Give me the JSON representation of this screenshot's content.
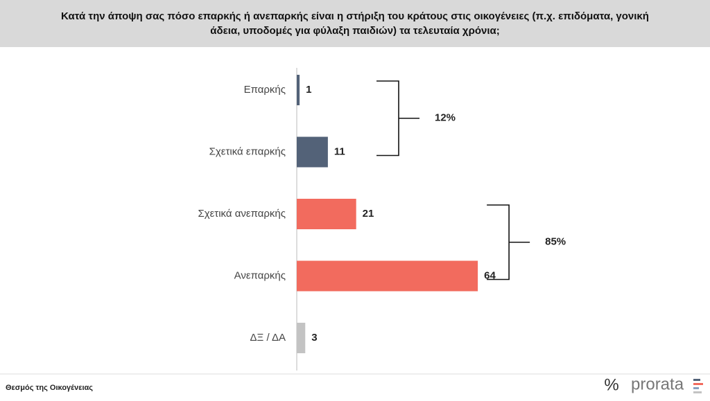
{
  "chart_data": {
    "type": "hbar",
    "title": "Κατά την άποψη σας πόσο επαρκής ή ανεπαρκής είναι η στήριξη του κράτους στις οικογένειες (π.χ. επιδόματα, γονική άδεια, υποδομές για φύλαξη παιδιών) τα τελευταία χρόνια;",
    "categories": [
      "Επαρκής",
      "Σχετικά επαρκής",
      "Σχετικά ανεπαρκής",
      "Ανεπαρκής",
      "ΔΞ / ΔΑ"
    ],
    "values": [
      1,
      11,
      21,
      64,
      3
    ],
    "colors": [
      "#536278",
      "#536278",
      "#f26b5e",
      "#f26b5e",
      "#c3c3c3"
    ],
    "groups": [
      {
        "value": 12,
        "value_label": "12%",
        "members": [
          0,
          1
        ]
      },
      {
        "value": 85,
        "value_label": "85%",
        "members": [
          2,
          3
        ]
      }
    ]
  },
  "footer": {
    "source": "Θεσμός της Οικογένειας",
    "logo_symbol": "%",
    "logo_text": "prorata"
  }
}
